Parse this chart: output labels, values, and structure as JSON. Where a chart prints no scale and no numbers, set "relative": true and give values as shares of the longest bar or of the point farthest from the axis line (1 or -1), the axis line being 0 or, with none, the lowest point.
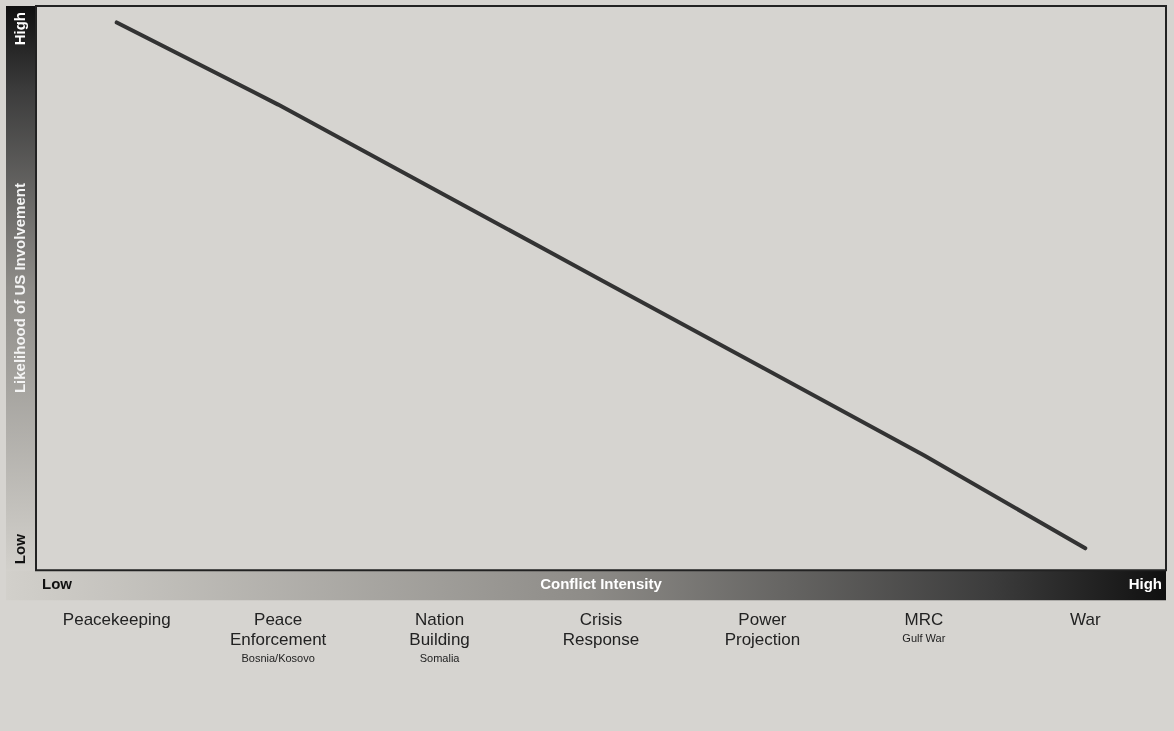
{
  "chart_data": {
    "type": "line",
    "relative": true,
    "xlabel": "Conflict Intensity",
    "ylabel": "Likelihood of US Involvement",
    "categories": [
      "Peacekeeping",
      "Peace Enforcement",
      "Nation Building",
      "Crisis Response",
      "Power Projection",
      "MRC",
      "War"
    ],
    "marker": "none",
    "line_style": "solid",
    "series": [
      {
        "color": "#333333",
        "values": [
          1,
          0.85,
          0.69,
          0.53,
          0.37,
          0.21,
          0.04
        ]
      }
    ],
    "annotations": [
      "Low",
      "High",
      "Low",
      "High",
      "Bosnia/Kosovo",
      "Somalia",
      "Gulf War"
    ]
  }
}
